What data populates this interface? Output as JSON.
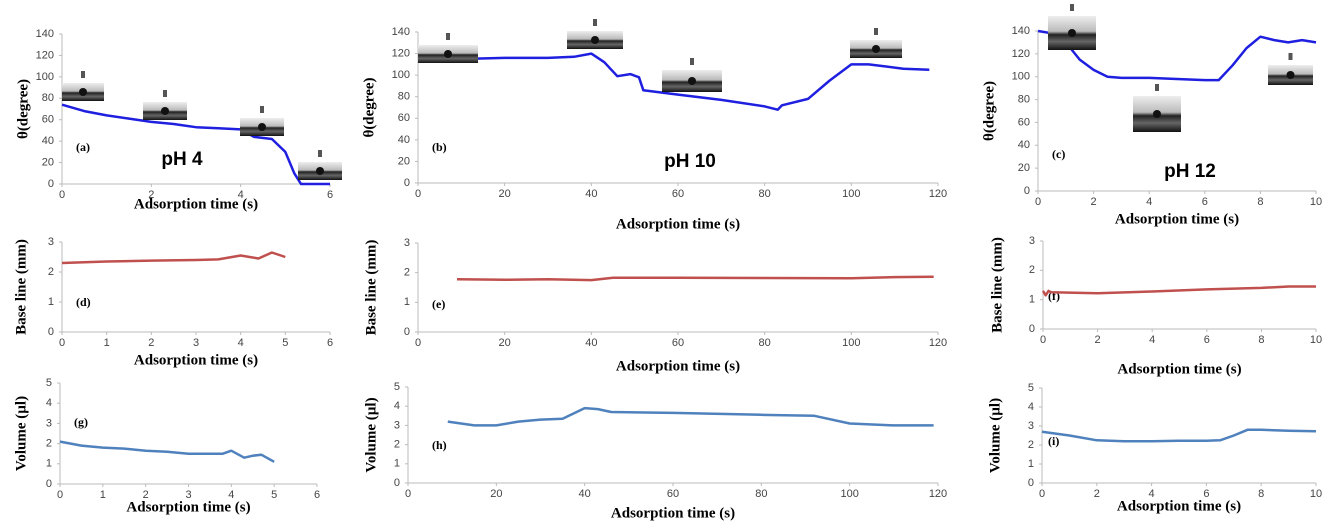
{
  "chart_data": [
    {
      "type": "line",
      "label": "(a)",
      "annotation": "pH 4",
      "xlabel": "Adsorption  time  (s)",
      "ylabel": "θ(degree)",
      "color": "#1f1fe0",
      "x": [
        0,
        0.5,
        1,
        1.5,
        2,
        2.5,
        3,
        3.5,
        4,
        4.3,
        4.7,
        5,
        5.2,
        5.35,
        5.5,
        6
      ],
      "values": [
        74,
        68,
        64,
        61,
        58,
        56,
        53,
        52,
        51,
        44,
        42,
        30,
        10,
        0,
        0,
        0
      ],
      "xlim": [
        0,
        6
      ],
      "ylim": [
        0,
        140
      ],
      "xticks": [
        0,
        2,
        4,
        6
      ],
      "yticks": [
        0,
        20,
        40,
        60,
        80,
        100,
        120,
        140
      ]
    },
    {
      "type": "line",
      "label": "(b)",
      "annotation": "pH 10",
      "xlabel": "Adsorption  time  (s)",
      "ylabel": "θ(degree)",
      "color": "#1f1fe0",
      "x": [
        0,
        10,
        20,
        30,
        36,
        40,
        43,
        46,
        49,
        51,
        52,
        60,
        70,
        80,
        83,
        84,
        90,
        95,
        100,
        104,
        108,
        112,
        118
      ],
      "values": [
        115,
        115,
        116,
        116,
        117,
        120,
        112,
        99,
        101,
        98,
        86,
        82,
        77,
        71,
        68,
        72,
        78,
        95,
        110,
        110,
        108,
        106,
        105
      ],
      "xlim": [
        0,
        120
      ],
      "ylim": [
        0,
        140
      ],
      "xticks": [
        0,
        20,
        40,
        60,
        80,
        100,
        120
      ],
      "yticks": [
        0,
        20,
        40,
        60,
        80,
        100,
        120,
        140
      ]
    },
    {
      "type": "line",
      "label": "(c)",
      "annotation": "pH 12",
      "xlabel": "Adsorption  time  (s)",
      "ylabel": "θ(degree)",
      "color": "#1f1fe0",
      "x": [
        0,
        0.5,
        1,
        1.5,
        2,
        2.5,
        3,
        4,
        5,
        6,
        6.5,
        7,
        7.5,
        8,
        8.5,
        9,
        9.5,
        10
      ],
      "values": [
        140,
        138,
        130,
        115,
        106,
        100,
        99,
        99,
        98,
        97,
        97,
        110,
        125,
        135,
        132,
        130,
        132,
        130
      ],
      "xlim": [
        0,
        10
      ],
      "ylim": [
        0,
        140
      ],
      "xticks": [
        0,
        2,
        4,
        6,
        8,
        10
      ],
      "yticks": [
        0,
        20,
        40,
        60,
        80,
        100,
        120,
        140
      ]
    },
    {
      "type": "line",
      "label": "(d)",
      "xlabel": "Adsorption  time  (s)",
      "ylabel": "Base line (mm)",
      "color": "#c0504d",
      "x": [
        0,
        1,
        2,
        3,
        3.5,
        4,
        4.2,
        4.4,
        4.7,
        4.9,
        5
      ],
      "values": [
        2.3,
        2.35,
        2.38,
        2.4,
        2.42,
        2.55,
        2.5,
        2.45,
        2.65,
        2.55,
        2.5
      ],
      "xlim": [
        0,
        6
      ],
      "ylim": [
        0,
        3
      ],
      "xticks": [
        0,
        1,
        2,
        3,
        4,
        5,
        6
      ],
      "yticks": [
        0,
        1,
        2,
        3
      ]
    },
    {
      "type": "line",
      "label": "(e)",
      "xlabel": "Adsorption  time  (s)",
      "ylabel": "Base line (mm)",
      "color": "#c0504d",
      "x": [
        9,
        20,
        30,
        40,
        45,
        60,
        80,
        100,
        110,
        119
      ],
      "values": [
        1.78,
        1.76,
        1.78,
        1.75,
        1.83,
        1.83,
        1.82,
        1.81,
        1.85,
        1.86
      ],
      "xlim": [
        0,
        120
      ],
      "ylim": [
        0,
        3
      ],
      "xticks": [
        0,
        20,
        40,
        60,
        80,
        100,
        120
      ],
      "yticks": [
        0,
        1,
        2,
        3
      ]
    },
    {
      "type": "line",
      "label": "(f)",
      "xlabel": "Adsorption  time  (s)",
      "ylabel": "Base line (mm)",
      "color": "#c0504d",
      "x": [
        0,
        0.1,
        0.2,
        0.3,
        2,
        4,
        6,
        8,
        9,
        10
      ],
      "values": [
        1.3,
        1.15,
        1.3,
        1.25,
        1.22,
        1.28,
        1.35,
        1.4,
        1.45,
        1.45
      ],
      "xlim": [
        0,
        10
      ],
      "ylim": [
        0,
        3
      ],
      "xticks": [
        0,
        2,
        4,
        6,
        8,
        10
      ],
      "yticks": [
        0,
        1,
        2,
        3
      ]
    },
    {
      "type": "line",
      "label": "(g)",
      "xlabel": "Adsorption  time  (s)",
      "ylabel": "Volume (µl)",
      "color": "#4f81bd",
      "x": [
        0,
        0.5,
        1,
        1.5,
        2,
        2.5,
        3,
        3.5,
        3.8,
        4,
        4.3,
        4.5,
        4.7,
        5
      ],
      "values": [
        2.1,
        1.9,
        1.8,
        1.75,
        1.65,
        1.6,
        1.5,
        1.5,
        1.5,
        1.65,
        1.3,
        1.4,
        1.45,
        1.1
      ],
      "xlim": [
        0,
        6
      ],
      "ylim": [
        0,
        5
      ],
      "xticks": [
        0,
        1,
        2,
        3,
        4,
        5,
        6
      ],
      "yticks": [
        0,
        1,
        2,
        3,
        4,
        5
      ]
    },
    {
      "type": "line",
      "label": "(h)",
      "xlabel": "Adsorption  time  (s)",
      "ylabel": "Volume (µl)",
      "color": "#4f81bd",
      "x": [
        9,
        12,
        15,
        20,
        25,
        30,
        35,
        40,
        43,
        46,
        60,
        80,
        92,
        100,
        110,
        119
      ],
      "values": [
        3.2,
        3.1,
        3.0,
        3.0,
        3.2,
        3.3,
        3.35,
        3.9,
        3.85,
        3.7,
        3.65,
        3.55,
        3.5,
        3.1,
        3.0,
        3.0
      ],
      "xlim": [
        0,
        120
      ],
      "ylim": [
        0,
        5
      ],
      "xticks": [
        0,
        20,
        40,
        60,
        80,
        100,
        120
      ],
      "yticks": [
        0,
        1,
        2,
        3,
        4,
        5
      ]
    },
    {
      "type": "line",
      "label": "(i)",
      "xlabel": "Adsorption  time  (s)",
      "ylabel": "Volume (µl)",
      "color": "#4f81bd",
      "x": [
        0,
        1,
        2,
        3,
        4,
        5,
        6,
        6.5,
        7,
        7.5,
        8,
        9,
        10
      ],
      "values": [
        2.7,
        2.5,
        2.25,
        2.2,
        2.2,
        2.22,
        2.22,
        2.25,
        2.5,
        2.8,
        2.8,
        2.75,
        2.72
      ],
      "xlim": [
        0,
        10
      ],
      "ylim": [
        0,
        5
      ],
      "xticks": [
        0,
        2,
        4,
        6,
        8,
        10
      ],
      "yticks": [
        0,
        1,
        2,
        3,
        4,
        5
      ]
    }
  ]
}
